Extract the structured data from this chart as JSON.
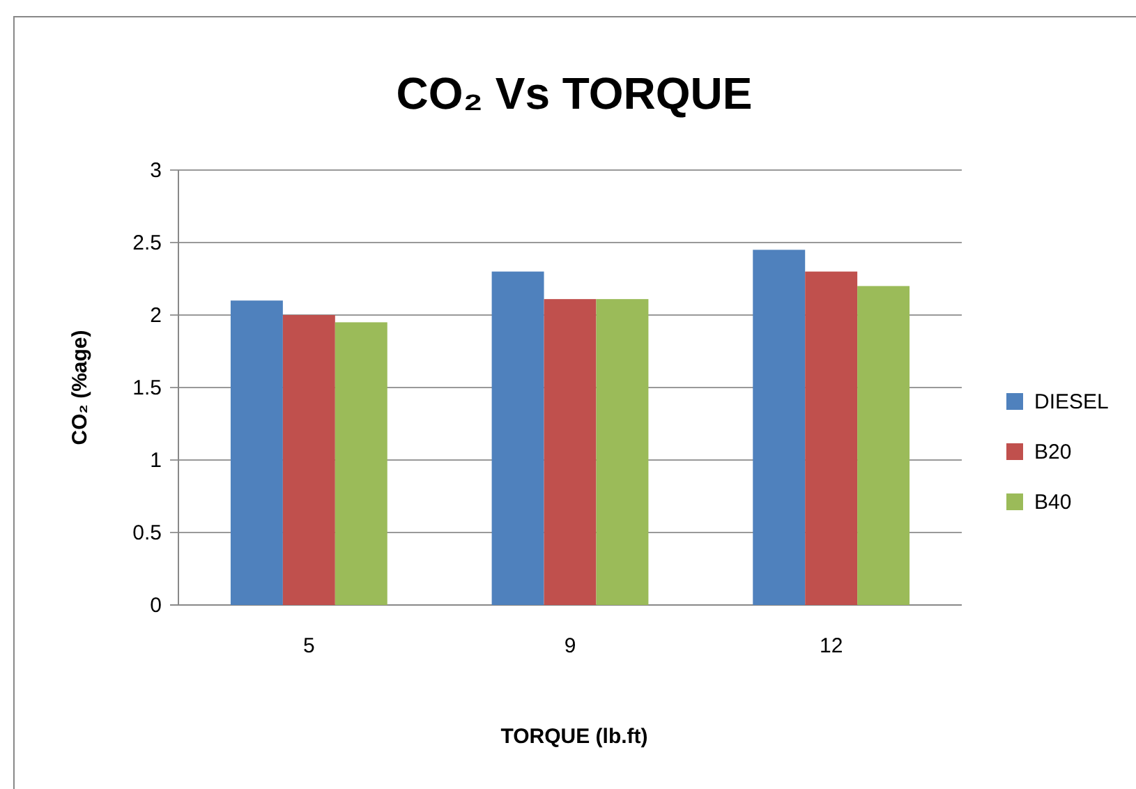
{
  "chart_data": {
    "type": "bar",
    "title": "CO₂ Vs TORQUE",
    "xlabel": "TORQUE (lb.ft)",
    "ylabel": "CO₂ (%age)",
    "categories": [
      "5",
      "9",
      "12"
    ],
    "series": [
      {
        "name": "DIESEL",
        "color": "#4f81bd",
        "values": [
          2.1,
          2.3,
          2.45
        ]
      },
      {
        "name": "B20",
        "color": "#c0504d",
        "values": [
          2.0,
          2.11,
          2.3
        ]
      },
      {
        "name": "B40",
        "color": "#9bbb59",
        "values": [
          1.95,
          2.11,
          2.2
        ]
      }
    ],
    "ylim": [
      0,
      3
    ],
    "yticks": [
      0,
      0.5,
      1,
      1.5,
      2,
      2.5,
      3
    ],
    "grid": "y",
    "legend": "right"
  }
}
